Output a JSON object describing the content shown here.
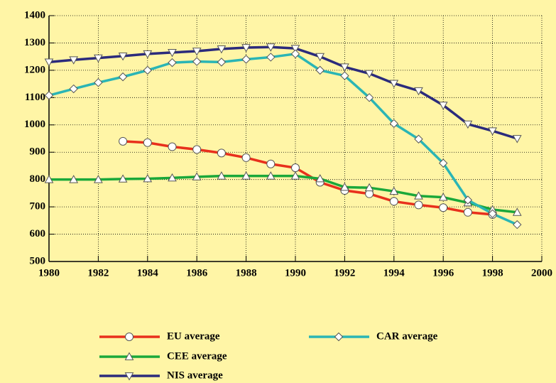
{
  "chart_data": {
    "type": "line",
    "x": [
      1980,
      1981,
      1982,
      1983,
      1984,
      1985,
      1986,
      1987,
      1988,
      1989,
      1990,
      1991,
      1992,
      1993,
      1994,
      1995,
      1996,
      1997,
      1998,
      1999
    ],
    "series": [
      {
        "name": "EU average",
        "color": "#e8301c",
        "marker": "circle",
        "values": [
          null,
          null,
          null,
          940,
          935,
          920,
          910,
          897,
          880,
          857,
          843,
          790,
          760,
          748,
          720,
          707,
          697,
          680,
          672,
          null
        ]
      },
      {
        "name": "CEE average",
        "color": "#1aa83a",
        "marker": "triangle-up",
        "values": [
          800,
          800,
          800,
          802,
          803,
          806,
          810,
          813,
          813,
          813,
          813,
          803,
          772,
          770,
          757,
          740,
          735,
          715,
          690,
          680
        ]
      },
      {
        "name": "NIS average",
        "color": "#2b2b7c",
        "marker": "triangle-down",
        "values": [
          1230,
          1238,
          1245,
          1252,
          1260,
          1265,
          1270,
          1278,
          1283,
          1285,
          1280,
          1250,
          1212,
          1188,
          1152,
          1125,
          1072,
          1003,
          978,
          950
        ]
      },
      {
        "name": "CAR average",
        "color": "#2ab5b5",
        "marker": "diamond",
        "values": [
          1108,
          1132,
          1155,
          1176,
          1200,
          1228,
          1232,
          1230,
          1240,
          1248,
          1260,
          1200,
          1180,
          1100,
          1005,
          948,
          860,
          725,
          675,
          635
        ]
      }
    ],
    "xlim": [
      1980,
      2000
    ],
    "xticks": [
      1980,
      1982,
      1984,
      1986,
      1988,
      1990,
      1992,
      1994,
      1996,
      1998,
      2000
    ],
    "ylim": [
      500,
      1400
    ],
    "yticks": [
      500,
      600,
      700,
      800,
      900,
      1000,
      1100,
      1200,
      1300,
      1400
    ],
    "grid": true
  }
}
